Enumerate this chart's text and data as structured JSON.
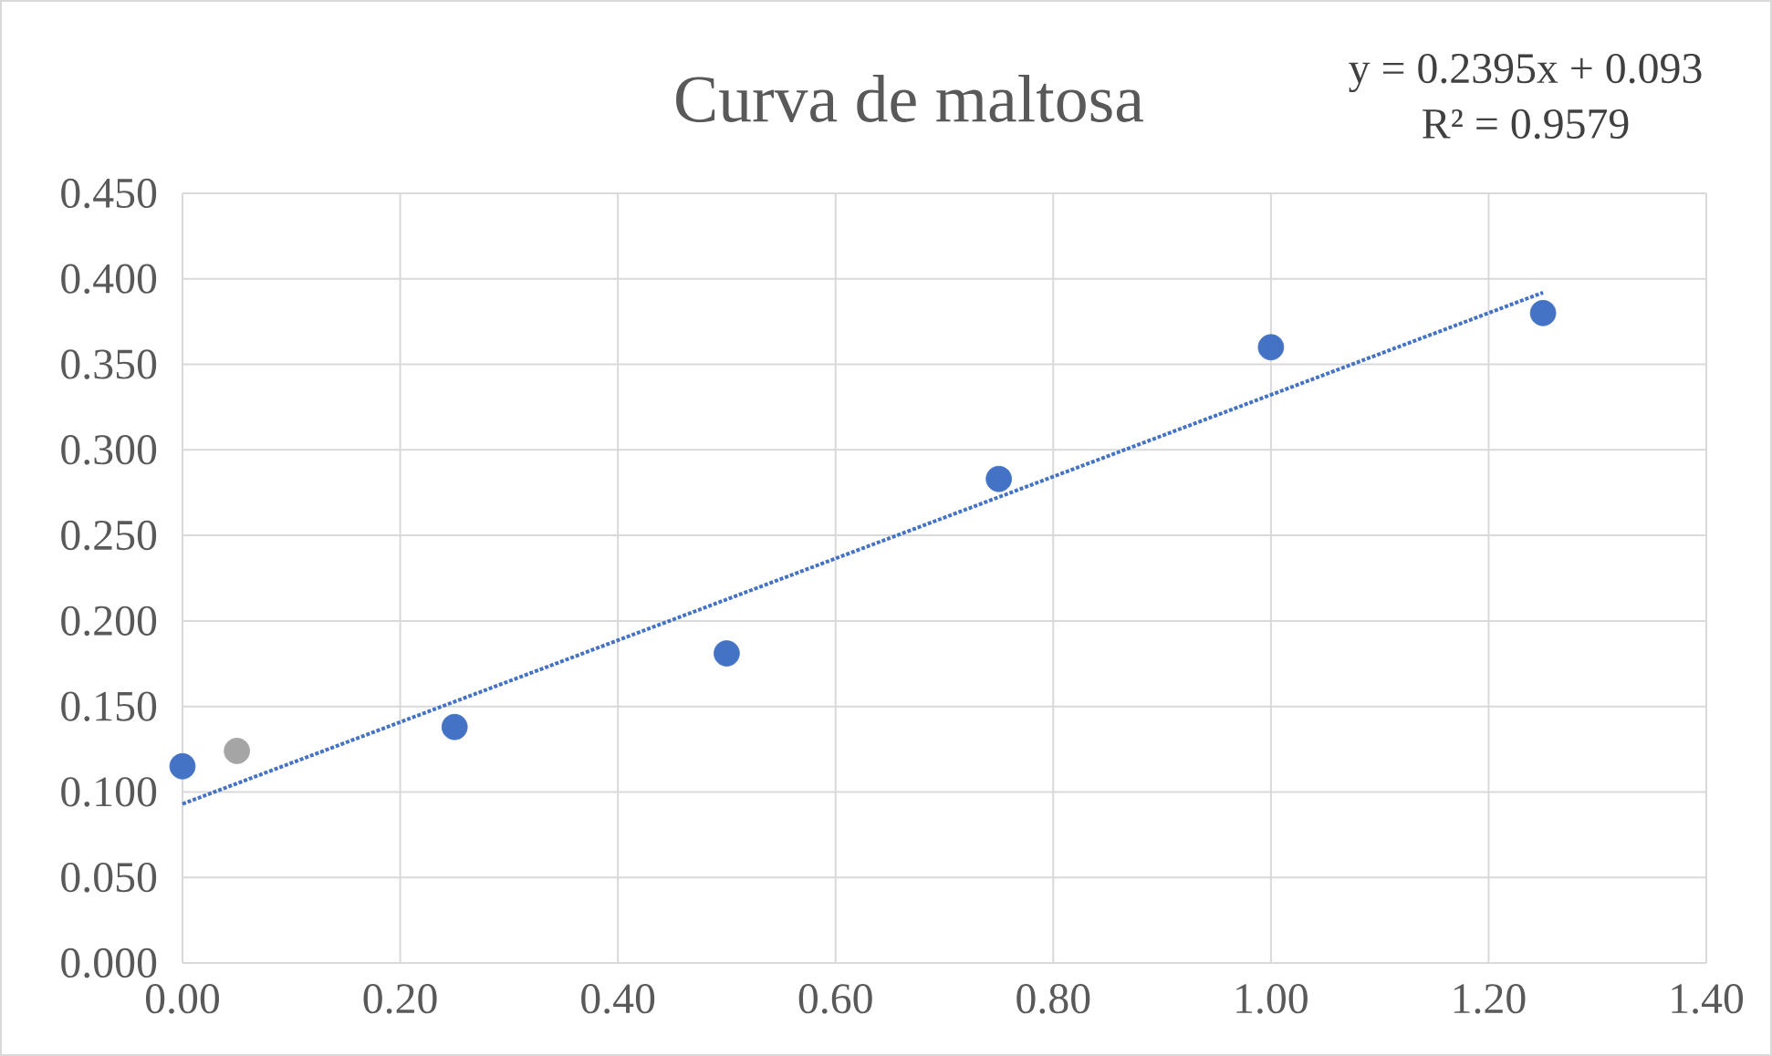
{
  "chart_data": {
    "type": "scatter",
    "title": "Curva de maltosa",
    "annotations": [
      "y = 0.2395x + 0.093",
      "R² = 0.9579"
    ],
    "series": [
      {
        "type": "scatter",
        "color": "#4472c4",
        "marker": "circle",
        "x": [
          0,
          0.25,
          0.5,
          0.75,
          1.0,
          1.25
        ],
        "values": [
          0.115,
          0.138,
          0.181,
          0.283,
          0.36,
          0.38
        ]
      },
      {
        "type": "scatter",
        "color": "#a5a5a5",
        "marker": "circle",
        "x": [
          0.05
        ],
        "values": [
          0.124
        ]
      },
      {
        "type": "line",
        "color": "#4472c4",
        "marker": "none",
        "line_style": "dotted",
        "x": [
          0,
          1.25
        ],
        "values": [
          0.093,
          0.392
        ]
      }
    ],
    "xlim": [
      0,
      1.4
    ],
    "ylim": [
      0,
      0.45
    ],
    "xticks": [
      {
        "value": 0,
        "label": "0.00"
      },
      {
        "value": 0.2,
        "label": "0.20"
      },
      {
        "value": 0.4,
        "label": "0.40"
      },
      {
        "value": 0.6,
        "label": "0.60"
      },
      {
        "value": 0.8,
        "label": "0.80"
      },
      {
        "value": 1.0,
        "label": "1.00"
      },
      {
        "value": 1.2,
        "label": "1.20"
      },
      {
        "value": 1.4,
        "label": "1.40"
      }
    ],
    "yticks": [
      {
        "value": 0,
        "label": "0.000"
      },
      {
        "value": 0.05,
        "label": "0.050"
      },
      {
        "value": 0.1,
        "label": "0.100"
      },
      {
        "value": 0.15,
        "label": "0.150"
      },
      {
        "value": 0.2,
        "label": "0.200"
      },
      {
        "value": 0.25,
        "label": "0.250"
      },
      {
        "value": 0.3,
        "label": "0.300"
      },
      {
        "value": 0.35,
        "label": "0.350"
      },
      {
        "value": 0.4,
        "label": "0.400"
      },
      {
        "value": 0.45,
        "label": "0.450"
      }
    ],
    "grid": true
  }
}
